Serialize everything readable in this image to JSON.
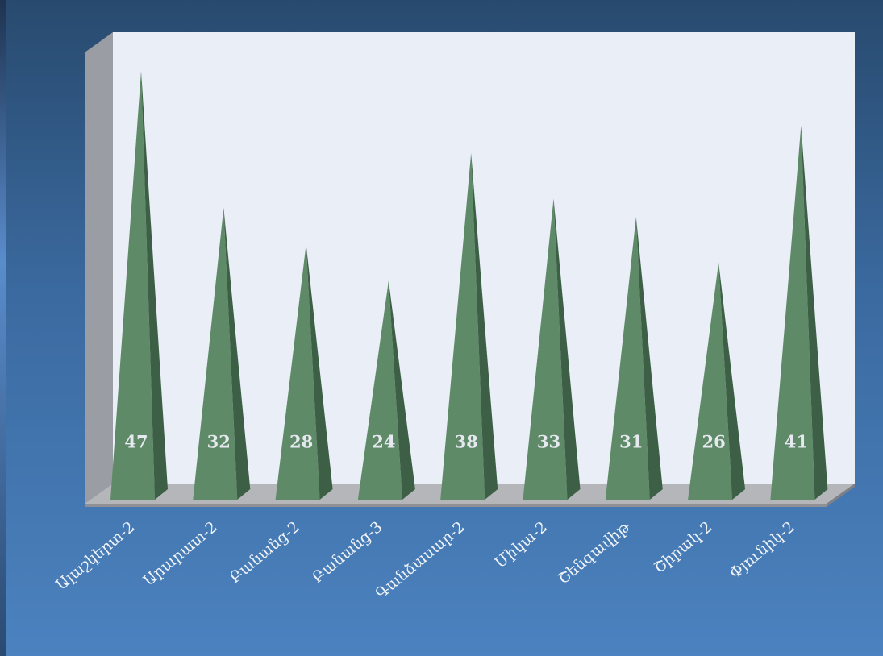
{
  "chart_data": {
    "type": "bar",
    "categories": [
      "Ալաշկերտ-2",
      "Արարատ-2",
      "Բանանց-2",
      "Բանանց-3",
      "Գանձասար-2",
      "Միկա-2",
      "Շենգավիթ",
      "Շիրակ-2",
      "Փյունիկ-2"
    ],
    "values": [
      47,
      32,
      28,
      24,
      38,
      33,
      31,
      26,
      41
    ],
    "color": "#5e8a68"
  }
}
